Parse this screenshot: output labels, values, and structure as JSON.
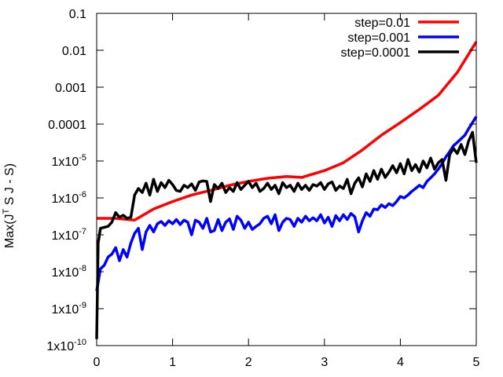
{
  "chart_data": {
    "type": "line",
    "title": "",
    "xlabel": "",
    "ylabel": "Max(Jᵀ S J - S)",
    "ylabel_parts": {
      "pre": "Max(J",
      "sup": "T",
      "post": " S J - S)"
    },
    "xlim": [
      0,
      5
    ],
    "ylim": [
      1e-10,
      0.1
    ],
    "yscale": "log",
    "grid": false,
    "legend_position": "top-right",
    "x_ticks": [
      {
        "value": 0,
        "label": "0"
      },
      {
        "value": 1,
        "label": "1"
      },
      {
        "value": 2,
        "label": "2"
      },
      {
        "value": 3,
        "label": "3"
      },
      {
        "value": 4,
        "label": "4"
      },
      {
        "value": 5,
        "label": "5"
      }
    ],
    "y_ticks": [
      {
        "value": 1e-10,
        "mant": "1x10",
        "exp": "-10",
        "label": ""
      },
      {
        "value": 1e-09,
        "mant": "1x10",
        "exp": "-9",
        "label": ""
      },
      {
        "value": 1e-08,
        "mant": "1x10",
        "exp": "-8",
        "label": ""
      },
      {
        "value": 1e-07,
        "mant": "1x10",
        "exp": "-7",
        "label": ""
      },
      {
        "value": 1e-06,
        "mant": "1x10",
        "exp": "-6",
        "label": ""
      },
      {
        "value": 1e-05,
        "mant": "1x10",
        "exp": "-5",
        "label": ""
      },
      {
        "value": 0.0001,
        "mant": "",
        "exp": "",
        "label": "0.0001"
      },
      {
        "value": 0.001,
        "mant": "",
        "exp": "",
        "label": "0.001"
      },
      {
        "value": 0.01,
        "mant": "",
        "exp": "",
        "label": "0.01"
      },
      {
        "value": 0.1,
        "mant": "",
        "exp": "",
        "label": "0.1"
      }
    ],
    "series": [
      {
        "name": "step=0.01",
        "color": "#ff0000",
        "points": [
          [
            0,
            2.8e-07
          ],
          [
            0.25,
            2.8e-07
          ],
          [
            0.5,
            2.5e-07
          ],
          [
            0.75,
            5e-07
          ],
          [
            1.0,
            8e-07
          ],
          [
            1.25,
            1.2e-06
          ],
          [
            1.5,
            1.6e-06
          ],
          [
            1.75,
            2.2e-06
          ],
          [
            2.0,
            2.8e-06
          ],
          [
            2.25,
            3.4e-06
          ],
          [
            2.5,
            3.8e-06
          ],
          [
            2.7,
            3.6e-06
          ],
          [
            3.0,
            5.5e-06
          ],
          [
            3.25,
            9e-06
          ],
          [
            3.5,
            2e-05
          ],
          [
            3.75,
            5e-05
          ],
          [
            4.0,
            0.00011
          ],
          [
            4.25,
            0.00025
          ],
          [
            4.5,
            0.0006
          ],
          [
            4.75,
            0.0025
          ],
          [
            5.0,
            0.017
          ]
        ]
      },
      {
        "name": "step=0.001",
        "color": "#0000ff",
        "points": [
          [
            0,
            3e-09
          ],
          [
            0.05,
            1.2e-08
          ],
          [
            0.1,
            1.5e-08
          ],
          [
            0.15,
            2.5e-08
          ],
          [
            0.2,
            3e-08
          ],
          [
            0.25,
            4.5e-08
          ],
          [
            0.3,
            2e-08
          ],
          [
            0.35,
            4e-08
          ],
          [
            0.4,
            2.5e-08
          ],
          [
            0.45,
            6e-08
          ],
          [
            0.5,
            1.1e-07
          ],
          [
            0.55,
            1.5e-07
          ],
          [
            0.6,
            4e-08
          ],
          [
            0.65,
            1.2e-07
          ],
          [
            0.7,
            1.8e-07
          ],
          [
            0.75,
            1.2e-07
          ],
          [
            0.8,
            2e-07
          ],
          [
            0.85,
            2.3e-07
          ],
          [
            0.9,
            1.8e-07
          ],
          [
            0.95,
            2.4e-07
          ],
          [
            1.0,
            2e-07
          ],
          [
            1.05,
            2.6e-07
          ],
          [
            1.1,
            1.9e-07
          ],
          [
            1.15,
            2.5e-07
          ],
          [
            1.2,
            2.2e-07
          ],
          [
            1.25,
            1e-07
          ],
          [
            1.3,
            2.5e-07
          ],
          [
            1.35,
            2.2e-07
          ],
          [
            1.4,
            1.5e-07
          ],
          [
            1.45,
            2.8e-07
          ],
          [
            1.5,
            1.2e-07
          ],
          [
            1.55,
            1.3e-07
          ],
          [
            1.6,
            2.6e-07
          ],
          [
            1.65,
            1.3e-07
          ],
          [
            1.7,
            2.2e-07
          ],
          [
            1.75,
            2.7e-07
          ],
          [
            1.8,
            1.4e-07
          ],
          [
            1.85,
            3.2e-07
          ],
          [
            1.9,
            2.5e-07
          ],
          [
            1.95,
            1.5e-07
          ],
          [
            2.0,
            2.2e-07
          ],
          [
            2.05,
            1.4e-07
          ],
          [
            2.1,
            1.7e-07
          ],
          [
            2.15,
            2e-07
          ],
          [
            2.2,
            2.8e-07
          ],
          [
            2.25,
            3.2e-07
          ],
          [
            2.3,
            2e-07
          ],
          [
            2.35,
            3.5e-07
          ],
          [
            2.4,
            1.3e-07
          ],
          [
            2.45,
            2.2e-07
          ],
          [
            2.5,
            2.8e-07
          ],
          [
            2.55,
            2.6e-07
          ],
          [
            2.6,
            1.7e-07
          ],
          [
            2.65,
            2.8e-07
          ],
          [
            2.7,
            2.2e-07
          ],
          [
            2.75,
            3.2e-07
          ],
          [
            2.8,
            2.4e-07
          ],
          [
            2.85,
            2.9e-07
          ],
          [
            2.9,
            2.4e-07
          ],
          [
            2.95,
            3.5e-07
          ],
          [
            3.0,
            2.1e-07
          ],
          [
            3.05,
            3e-07
          ],
          [
            3.1,
            1.7e-07
          ],
          [
            3.15,
            3.3e-07
          ],
          [
            3.2,
            2.4e-07
          ],
          [
            3.25,
            3.5e-07
          ],
          [
            3.3,
            2.6e-07
          ],
          [
            3.35,
            3.8e-07
          ],
          [
            3.4,
            3.1e-07
          ],
          [
            3.45,
            1.2e-07
          ],
          [
            3.5,
            2.4e-07
          ],
          [
            3.55,
            4e-07
          ],
          [
            3.6,
            3.2e-07
          ],
          [
            3.65,
            5e-07
          ],
          [
            3.7,
            4.8e-07
          ],
          [
            3.75,
            6.5e-07
          ],
          [
            3.8,
            5.5e-07
          ],
          [
            3.85,
            7e-07
          ],
          [
            3.9,
            6.2e-07
          ],
          [
            3.95,
            8e-07
          ],
          [
            4.0,
            1.1e-06
          ],
          [
            4.05,
            1e-06
          ],
          [
            4.1,
            1.2e-06
          ],
          [
            4.15,
            1.5e-06
          ],
          [
            4.2,
            1.8e-06
          ],
          [
            4.25,
            2.2e-06
          ],
          [
            4.3,
            1.9e-06
          ],
          [
            4.35,
            2.8e-06
          ],
          [
            4.4,
            3.5e-06
          ],
          [
            4.45,
            4.5e-06
          ],
          [
            4.5,
            6e-06
          ],
          [
            4.55,
            8.5e-06
          ],
          [
            4.6,
            1.3e-05
          ],
          [
            4.65,
            1.8e-05
          ],
          [
            4.7,
            2.6e-05
          ],
          [
            4.75,
            3.2e-05
          ],
          [
            4.8,
            4e-05
          ],
          [
            4.85,
            5e-05
          ],
          [
            4.9,
            7.5e-05
          ],
          [
            4.95,
            0.00011
          ],
          [
            5.0,
            0.00016
          ]
        ]
      },
      {
        "name": "step=0.0001",
        "color": "#000000",
        "points": [
          [
            0,
            1.5e-10
          ],
          [
            0.02,
            6e-08
          ],
          [
            0.05,
            1.5e-07
          ],
          [
            0.1,
            1.6e-07
          ],
          [
            0.15,
            1.7e-07
          ],
          [
            0.2,
            2.2e-07
          ],
          [
            0.25,
            4e-07
          ],
          [
            0.3,
            3e-07
          ],
          [
            0.35,
            3.4e-07
          ],
          [
            0.4,
            2.8e-07
          ],
          [
            0.45,
            3e-07
          ],
          [
            0.5,
            1.2e-06
          ],
          [
            0.55,
            1.8e-06
          ],
          [
            0.6,
            1.4e-06
          ],
          [
            0.65,
            2.5e-06
          ],
          [
            0.7,
            1.2e-06
          ],
          [
            0.75,
            3.2e-06
          ],
          [
            0.8,
            1.5e-06
          ],
          [
            0.85,
            2.6e-06
          ],
          [
            0.9,
            1.9e-06
          ],
          [
            0.95,
            3e-06
          ],
          [
            1.0,
            2.3e-06
          ],
          [
            1.05,
            1.6e-06
          ],
          [
            1.1,
            1.5e-06
          ],
          [
            1.15,
            2.2e-06
          ],
          [
            1.2,
            1.9e-06
          ],
          [
            1.25,
            2.4e-06
          ],
          [
            1.3,
            1.6e-06
          ],
          [
            1.35,
            2.7e-06
          ],
          [
            1.4,
            2.9e-06
          ],
          [
            1.45,
            2.8e-06
          ],
          [
            1.5,
            8e-07
          ],
          [
            1.55,
            2.3e-06
          ],
          [
            1.6,
            1.8e-06
          ],
          [
            1.65,
            2.5e-06
          ],
          [
            1.7,
            1.4e-06
          ],
          [
            1.75,
            1.9e-06
          ],
          [
            1.8,
            1.5e-06
          ],
          [
            1.85,
            2.6e-06
          ],
          [
            1.9,
            1.7e-06
          ],
          [
            1.95,
            2.2e-06
          ],
          [
            2.0,
            2.8e-06
          ],
          [
            2.05,
            1.9e-06
          ],
          [
            2.1,
            2.5e-06
          ],
          [
            2.15,
            1.5e-06
          ],
          [
            2.2,
            1.8e-06
          ],
          [
            2.25,
            2.5e-06
          ],
          [
            2.3,
            1.7e-06
          ],
          [
            2.35,
            2.2e-06
          ],
          [
            2.4,
            1.3e-06
          ],
          [
            2.45,
            2.6e-06
          ],
          [
            2.5,
            1.9e-06
          ],
          [
            2.55,
            2.2e-06
          ],
          [
            2.6,
            1.5e-06
          ],
          [
            2.65,
            2.5e-06
          ],
          [
            2.7,
            1.7e-06
          ],
          [
            2.75,
            2.2e-06
          ],
          [
            2.8,
            1.6e-06
          ],
          [
            2.85,
            2.3e-06
          ],
          [
            2.9,
            2.1e-06
          ],
          [
            2.95,
            2.6e-06
          ],
          [
            3.0,
            1.7e-06
          ],
          [
            3.05,
            2.4e-06
          ],
          [
            3.1,
            2.7e-06
          ],
          [
            3.15,
            1.6e-06
          ],
          [
            3.2,
            2.1e-06
          ],
          [
            3.25,
            1.8e-06
          ],
          [
            3.3,
            3.2e-06
          ],
          [
            3.35,
            1.3e-06
          ],
          [
            3.4,
            2.5e-06
          ],
          [
            3.45,
            3.5e-06
          ],
          [
            3.5,
            2e-06
          ],
          [
            3.55,
            4.5e-06
          ],
          [
            3.6,
            2.8e-06
          ],
          [
            3.65,
            5.5e-06
          ],
          [
            3.7,
            3.2e-06
          ],
          [
            3.75,
            6e-06
          ],
          [
            3.8,
            3.6e-06
          ],
          [
            3.85,
            5e-06
          ],
          [
            3.9,
            7.5e-06
          ],
          [
            3.95,
            4.8e-06
          ],
          [
            4.0,
            8.5e-06
          ],
          [
            4.05,
            4.5e-06
          ],
          [
            4.1,
            1.1e-05
          ],
          [
            4.15,
            5.5e-06
          ],
          [
            4.2,
            8e-06
          ],
          [
            4.25,
            5e-06
          ],
          [
            4.3,
            1e-05
          ],
          [
            4.35,
            6.5e-06
          ],
          [
            4.4,
            1.2e-05
          ],
          [
            4.45,
            6e-06
          ],
          [
            4.5,
            9e-06
          ],
          [
            4.55,
            1.1e-05
          ],
          [
            4.6,
            3e-06
          ],
          [
            4.65,
            1.5e-05
          ],
          [
            4.7,
            2.2e-05
          ],
          [
            4.75,
            1.6e-05
          ],
          [
            4.8,
            2.8e-05
          ],
          [
            4.85,
            1.5e-05
          ],
          [
            4.9,
            3.5e-05
          ],
          [
            4.95,
            6e-05
          ],
          [
            5.0,
            9e-06
          ]
        ]
      }
    ]
  }
}
